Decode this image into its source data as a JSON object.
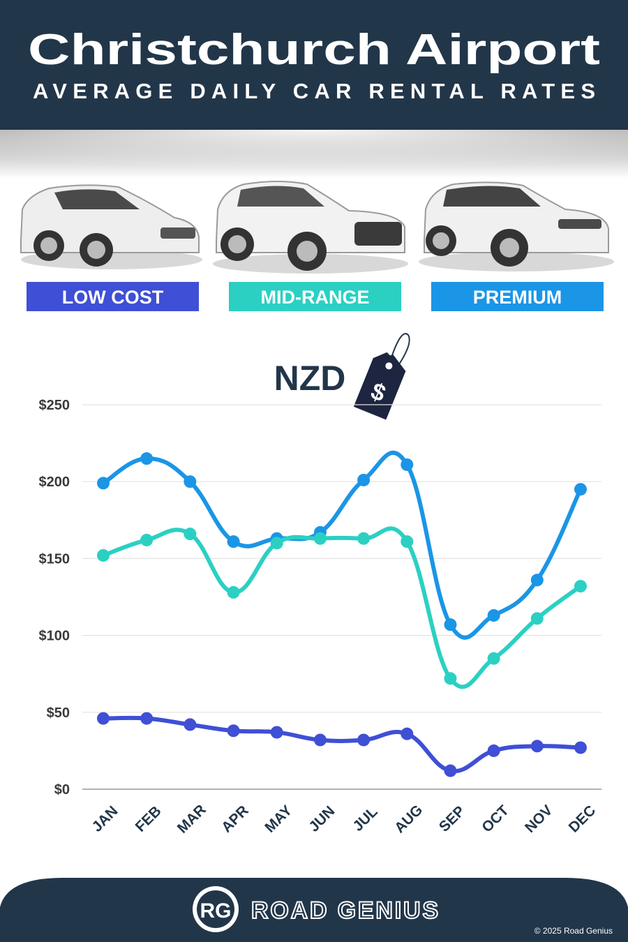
{
  "chart_data": {
    "type": "line",
    "title": "Christchurch Airport",
    "subtitle": "AVERAGE DAILY CAR RENTAL RATES",
    "currency": "NZD",
    "currency_icon": "$",
    "categories": [
      "JAN",
      "FEB",
      "MAR",
      "APR",
      "MAY",
      "JUN",
      "JUL",
      "AUG",
      "SEP",
      "OCT",
      "NOV",
      "DEC"
    ],
    "series": [
      {
        "name": "LOW COST",
        "color": "#3f4fd6",
        "values": [
          46,
          46,
          42,
          38,
          37,
          32,
          32,
          36,
          12,
          25,
          28,
          27
        ]
      },
      {
        "name": "MID-RANGE",
        "color": "#2bd0c3",
        "values": [
          152,
          162,
          166,
          128,
          160,
          163,
          163,
          161,
          72,
          85,
          111,
          132
        ]
      },
      {
        "name": "PREMIUM",
        "color": "#1b95e6",
        "values": [
          199,
          215,
          200,
          161,
          163,
          167,
          201,
          211,
          107,
          113,
          136,
          195
        ]
      }
    ],
    "ylim": [
      0,
      250
    ],
    "yticks": [
      {
        "value": 0,
        "label": "$0"
      },
      {
        "value": 50,
        "label": "$50"
      },
      {
        "value": 100,
        "label": "$100"
      },
      {
        "value": 150,
        "label": "$150"
      },
      {
        "value": 200,
        "label": "$200"
      },
      {
        "value": 250,
        "label": "$250"
      }
    ],
    "grid": true
  },
  "footer": {
    "logo_mark": "RG",
    "brand": "ROAD GENIUS",
    "copyright": "© 2025 Road Genius"
  }
}
